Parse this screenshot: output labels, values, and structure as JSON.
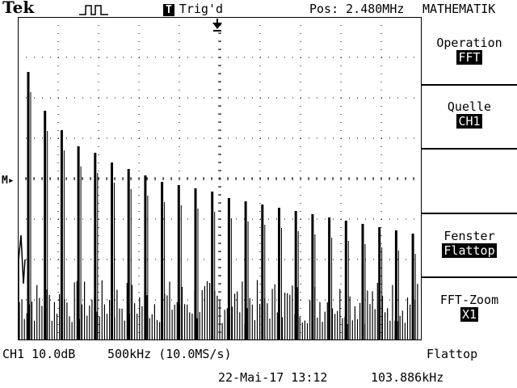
{
  "header": {
    "brand": "Tek",
    "trigger_badge": "T",
    "trigger_status": "Trig'd",
    "position": "Pos: 2.480MHz",
    "menu_title": "MATHEMATIK"
  },
  "marker": {
    "label": "M"
  },
  "menu": {
    "items": [
      {
        "label": "Operation",
        "value": "FFT"
      },
      {
        "label": "Quelle",
        "value": "CH1"
      },
      {
        "label": "Fenster",
        "value": "Flattop"
      },
      {
        "label": "FFT-Zoom",
        "value": "X1"
      }
    ]
  },
  "footer": {
    "channel_scale": "CH1 10.0dB",
    "span_rate": "500kHz (10.0MS/s)",
    "window": "Flattop",
    "date_time": "22-Mai-17 13:12",
    "frequency": "103.886kHz"
  },
  "chart_data": {
    "type": "line",
    "title": "",
    "xlabel": "",
    "ylabel": "",
    "grid": true,
    "peaks": [
      {
        "index": 1,
        "level": 0.83
      },
      {
        "index": 2,
        "level": 0.71
      },
      {
        "index": 3,
        "level": 0.65
      },
      {
        "index": 4,
        "level": 0.6
      },
      {
        "index": 5,
        "level": 0.58
      },
      {
        "index": 6,
        "level": 0.55
      },
      {
        "index": 7,
        "level": 0.53
      },
      {
        "index": 8,
        "level": 0.51
      },
      {
        "index": 9,
        "level": 0.49
      },
      {
        "index": 10,
        "level": 0.48
      },
      {
        "index": 11,
        "level": 0.47
      },
      {
        "index": 12,
        "level": 0.46
      },
      {
        "index": 13,
        "level": 0.44
      },
      {
        "index": 14,
        "level": 0.43
      },
      {
        "index": 15,
        "level": 0.42
      },
      {
        "index": 16,
        "level": 0.41
      },
      {
        "index": 17,
        "level": 0.4
      },
      {
        "index": 18,
        "level": 0.39
      },
      {
        "index": 19,
        "level": 0.38
      },
      {
        "index": 20,
        "level": 0.37
      },
      {
        "index": 21,
        "level": 0.36
      },
      {
        "index": 22,
        "level": 0.35
      },
      {
        "index": 23,
        "level": 0.34
      },
      {
        "index": 24,
        "level": 0.33
      },
      {
        "index": 25,
        "level": 0.32
      }
    ]
  }
}
